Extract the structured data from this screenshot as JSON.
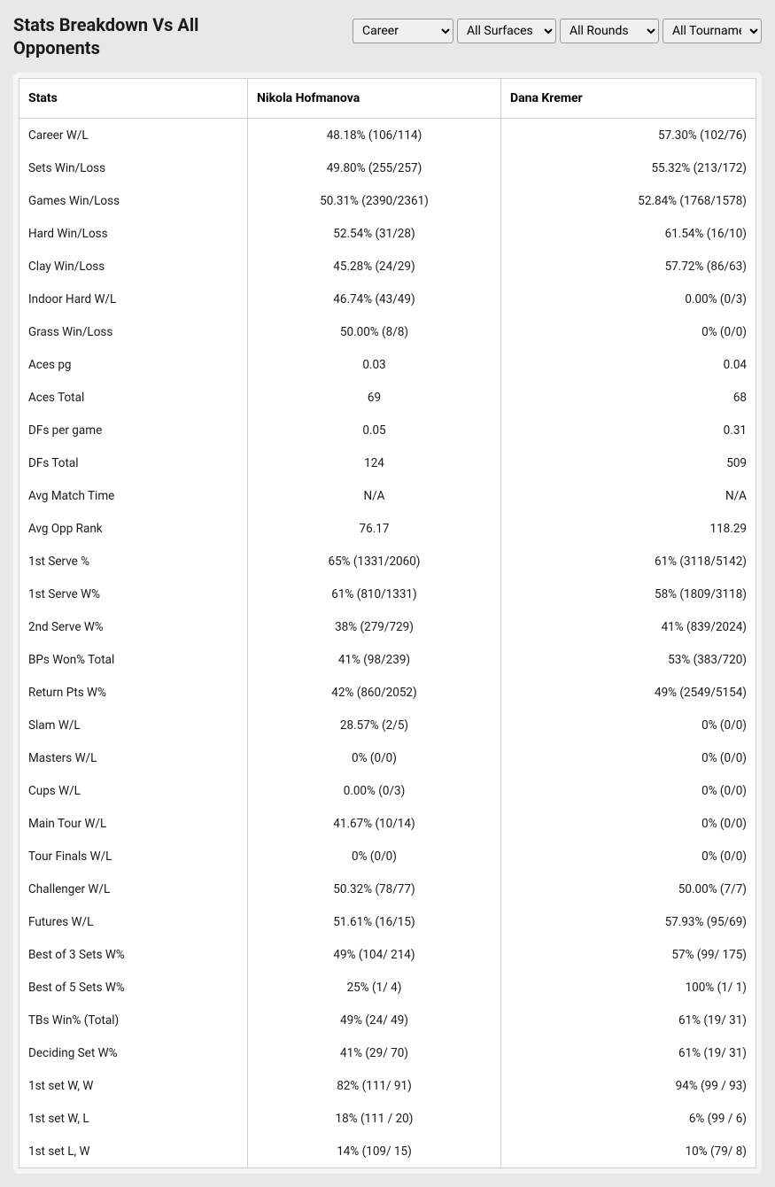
{
  "title": "Stats Breakdown Vs All Opponents",
  "filters": {
    "career": "Career",
    "surface": "All Surfaces",
    "rounds": "All Rounds",
    "tournament": "All Tournaments"
  },
  "table": {
    "header_stats": "Stats",
    "header_p1": "Nikola Hofmanova",
    "header_p2": "Dana Kremer",
    "rows": [
      {
        "stat": "Career W/L",
        "p1": "48.18% (106/114)",
        "p2": "57.30% (102/76)"
      },
      {
        "stat": "Sets Win/Loss",
        "p1": "49.80% (255/257)",
        "p2": "55.32% (213/172)"
      },
      {
        "stat": "Games Win/Loss",
        "p1": "50.31% (2390/2361)",
        "p2": "52.84% (1768/1578)"
      },
      {
        "stat": "Hard Win/Loss",
        "p1": "52.54% (31/28)",
        "p2": "61.54% (16/10)"
      },
      {
        "stat": "Clay Win/Loss",
        "p1": "45.28% (24/29)",
        "p2": "57.72% (86/63)"
      },
      {
        "stat": "Indoor Hard W/L",
        "p1": "46.74% (43/49)",
        "p2": "0.00% (0/3)"
      },
      {
        "stat": "Grass Win/Loss",
        "p1": "50.00% (8/8)",
        "p2": "0% (0/0)"
      },
      {
        "stat": "Aces pg",
        "p1": "0.03",
        "p2": "0.04"
      },
      {
        "stat": "Aces Total",
        "p1": "69",
        "p2": "68"
      },
      {
        "stat": "DFs per game",
        "p1": "0.05",
        "p2": "0.31"
      },
      {
        "stat": "DFs Total",
        "p1": "124",
        "p2": "509"
      },
      {
        "stat": "Avg Match Time",
        "p1": "N/A",
        "p2": "N/A"
      },
      {
        "stat": "Avg Opp Rank",
        "p1": "76.17",
        "p2": "118.29"
      },
      {
        "stat": "1st Serve %",
        "p1": "65% (1331/2060)",
        "p2": "61% (3118/5142)"
      },
      {
        "stat": "1st Serve W%",
        "p1": "61% (810/1331)",
        "p2": "58% (1809/3118)"
      },
      {
        "stat": "2nd Serve W%",
        "p1": "38% (279/729)",
        "p2": "41% (839/2024)"
      },
      {
        "stat": "BPs Won% Total",
        "p1": "41% (98/239)",
        "p2": "53% (383/720)"
      },
      {
        "stat": "Return Pts W%",
        "p1": "42% (860/2052)",
        "p2": "49% (2549/5154)"
      },
      {
        "stat": "Slam W/L",
        "p1": "28.57% (2/5)",
        "p2": "0% (0/0)"
      },
      {
        "stat": "Masters W/L",
        "p1": "0% (0/0)",
        "p2": "0% (0/0)"
      },
      {
        "stat": "Cups W/L",
        "p1": "0.00% (0/3)",
        "p2": "0% (0/0)"
      },
      {
        "stat": "Main Tour W/L",
        "p1": "41.67% (10/14)",
        "p2": "0% (0/0)"
      },
      {
        "stat": "Tour Finals W/L",
        "p1": "0% (0/0)",
        "p2": "0% (0/0)"
      },
      {
        "stat": "Challenger W/L",
        "p1": "50.32% (78/77)",
        "p2": "50.00% (7/7)"
      },
      {
        "stat": "Futures W/L",
        "p1": "51.61% (16/15)",
        "p2": "57.93% (95/69)"
      },
      {
        "stat": "Best of 3 Sets W%",
        "p1": "49% (104/ 214)",
        "p2": "57% (99/ 175)"
      },
      {
        "stat": "Best of 5 Sets W%",
        "p1": "25% (1/ 4)",
        "p2": "100% (1/ 1)"
      },
      {
        "stat": "TBs Win% (Total)",
        "p1": "49% (24/ 49)",
        "p2": "61% (19/ 31)"
      },
      {
        "stat": "Deciding Set W%",
        "p1": "41% (29/ 70)",
        "p2": "61% (19/ 31)"
      },
      {
        "stat": "1st set W, W",
        "p1": "82% (111/ 91)",
        "p2": "94% (99 / 93)"
      },
      {
        "stat": "1st set W, L",
        "p1": "18% (111 / 20)",
        "p2": "6% (99 / 6)"
      },
      {
        "stat": "1st set L, W",
        "p1": "14% (109/ 15)",
        "p2": "10% (79/ 8)"
      }
    ]
  }
}
